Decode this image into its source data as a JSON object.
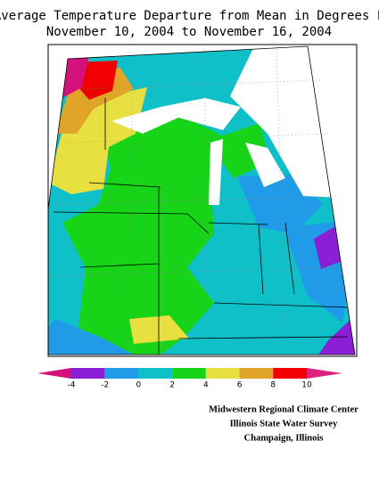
{
  "title": {
    "line1": "Average Temperature Departure from Mean in Degrees F",
    "line2": "November 10, 2004 to November 16, 2004"
  },
  "legend": {
    "ticks": [
      -4,
      -2,
      0,
      2,
      4,
      6,
      8,
      10
    ],
    "colors": [
      "#d4107a",
      "#8a1fd6",
      "#1f9be8",
      "#10c0c8",
      "#18d418",
      "#e8e040",
      "#e0a428",
      "#f00000",
      "#e0207f"
    ]
  },
  "credits": [
    "Midwestern Regional Climate Center",
    "Illinois State Water Survey",
    "Champaign, Illinois"
  ]
}
